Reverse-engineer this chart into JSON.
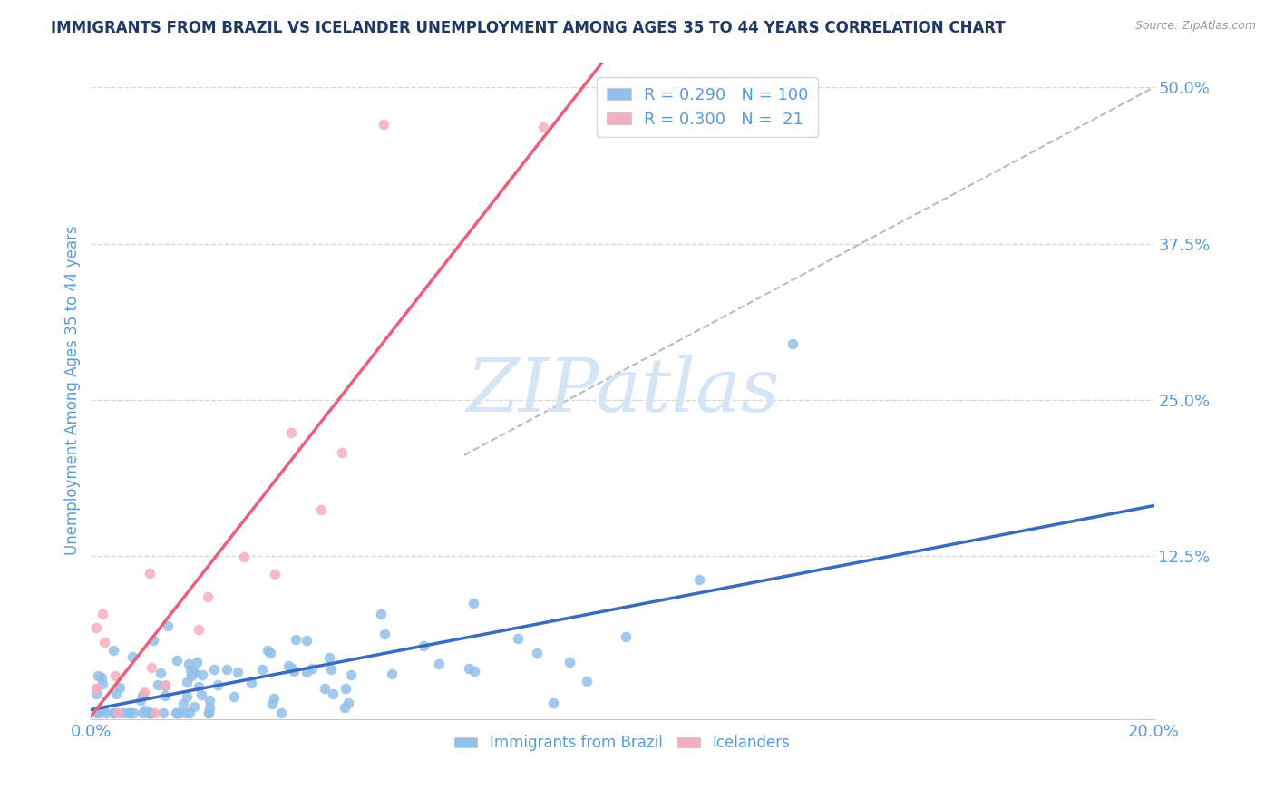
{
  "title": "IMMIGRANTS FROM BRAZIL VS ICELANDER UNEMPLOYMENT AMONG AGES 35 TO 44 YEARS CORRELATION CHART",
  "source": "Source: ZipAtlas.com",
  "ylabel": "Unemployment Among Ages 35 to 44 years",
  "legend_label1": "Immigrants from Brazil",
  "legend_label2": "Icelanders",
  "R1": 0.29,
  "N1": 100,
  "R2": 0.3,
  "N2": 21,
  "xlim": [
    0.0,
    0.2
  ],
  "ylim": [
    -0.005,
    0.52
  ],
  "yticks": [
    0.0,
    0.125,
    0.25,
    0.375,
    0.5
  ],
  "ytick_labels": [
    "",
    "12.5%",
    "25.0%",
    "37.5%",
    "50.0%"
  ],
  "xtick_positions": [
    0.0,
    0.05,
    0.1,
    0.15,
    0.2
  ],
  "xtick_labels": [
    "0.0%",
    "",
    "",
    "",
    "20.0%"
  ],
  "blue_color": "#92C0E8",
  "pink_color": "#F4AFBF",
  "trend_blue": "#3A6BBF",
  "trend_pink": "#E8607A",
  "gray_line_color": "#BBBBBB",
  "title_color": "#1F3864",
  "axis_label_color": "#5B9BD5",
  "tick_color": "#5B9BD5",
  "watermark_text": "ZIPatlas",
  "watermark_color": "#D5E5F5",
  "grid_color": "#D8D8D8"
}
